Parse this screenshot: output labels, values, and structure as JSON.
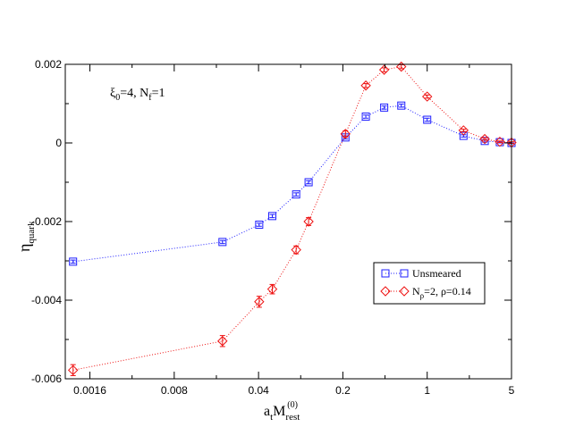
{
  "chart_data": {
    "type": "scatter",
    "xscale": "log",
    "xlim": [
      0.001,
      5
    ],
    "ylim": [
      -0.006,
      0.002
    ],
    "xticks": [
      0.0016,
      0.008,
      0.04,
      0.2,
      1,
      5
    ],
    "xtick_labels": [
      "0.0016",
      "0.008",
      "0.04",
      "0.2",
      "1",
      "5"
    ],
    "yticks": [
      0.002,
      0,
      -0.002,
      -0.004,
      -0.006
    ],
    "ytick_labels": [
      "0.002",
      "0",
      "-0.002",
      "-0.004",
      "-0.006"
    ],
    "xlabel": {
      "main": "a",
      "sub1": "t",
      "mid": "M",
      "sub2": "rest",
      "sup": "(0)"
    },
    "ylabel": {
      "main": "η",
      "sub": "quark"
    },
    "annotation": {
      "xi": "ξ",
      "xi_sub": "0",
      "xi_rest": "=4,  N",
      "nf_sub": "f",
      "nf_rest": "=1"
    },
    "legend": {
      "position": "lower-right",
      "entries": [
        {
          "text": "Unsmeared"
        },
        {
          "text_main": "N",
          "text_sub": "ρ",
          "text_rest": "=2, ρ=0.14"
        }
      ]
    },
    "series": [
      {
        "name": "Unsmeared",
        "color": "#1f1fff",
        "marker": "square",
        "x": [
          0.00116,
          0.0201,
          0.0405,
          0.052,
          0.082,
          0.104,
          0.21,
          0.31,
          0.44,
          0.61,
          1.0,
          2.0,
          3.0,
          4.0,
          5.0
        ],
        "y": [
          -0.00302,
          -0.00252,
          -0.00208,
          -0.00186,
          -0.00131,
          -0.001,
          0.00014,
          0.00067,
          0.0009,
          0.00095,
          0.00059,
          0.00018,
          5e-05,
          2e-05,
          0.0
        ],
        "err": [
          4e-05,
          4e-05,
          4e-05,
          4e-05,
          4e-05,
          4e-05,
          4e-05,
          4e-05,
          4e-05,
          4e-05,
          4e-05,
          3e-05,
          3e-05,
          2e-05,
          2e-05
        ]
      },
      {
        "name": "N_rho=2, rho=0.14",
        "color": "#ee1111",
        "marker": "diamond",
        "x": [
          0.00116,
          0.0201,
          0.0405,
          0.052,
          0.082,
          0.104,
          0.21,
          0.31,
          0.44,
          0.61,
          1.0,
          2.0,
          3.0,
          4.0,
          5.0
        ],
        "y": [
          -0.00578,
          -0.00504,
          -0.00404,
          -0.00372,
          -0.00272,
          -0.002,
          0.00023,
          0.00146,
          0.00186,
          0.00194,
          0.00118,
          0.00032,
          0.0001,
          3e-05,
          1e-05
        ],
        "err": [
          0.00014,
          0.00014,
          0.00014,
          0.00012,
          0.0001,
          0.0001,
          8e-05,
          5e-05,
          5e-05,
          5e-05,
          4e-05,
          3e-05,
          3e-05,
          2e-05,
          2e-05
        ]
      }
    ]
  }
}
